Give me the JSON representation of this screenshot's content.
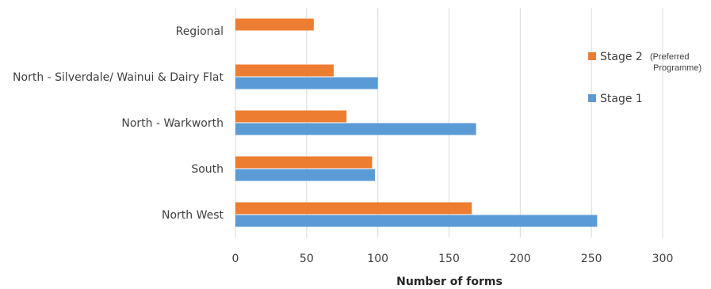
{
  "chart_data": {
    "type": "bar",
    "orientation": "horizontal",
    "categories": [
      "Regional",
      "North - Silverdale/ Wainui & Dairy Flat",
      "North - Warkworth",
      "South",
      "North West"
    ],
    "series": [
      {
        "name": "Stage 2",
        "note_line1": "(Preferred",
        "note_line2": "Programme)",
        "color": "#ED7D31",
        "values": [
          55,
          69,
          78,
          96,
          166
        ]
      },
      {
        "name": "Stage 1",
        "color": "#5B9BD5",
        "values": [
          0,
          100,
          169,
          98,
          254
        ]
      }
    ],
    "xlabel": "Number of forms",
    "ylabel": "",
    "xlim": [
      0,
      300
    ],
    "xticks": [
      0,
      50,
      100,
      150,
      200,
      250,
      300
    ],
    "grid": "vertical",
    "legend_position": "right",
    "gridline_color": "#d9d9d9"
  }
}
